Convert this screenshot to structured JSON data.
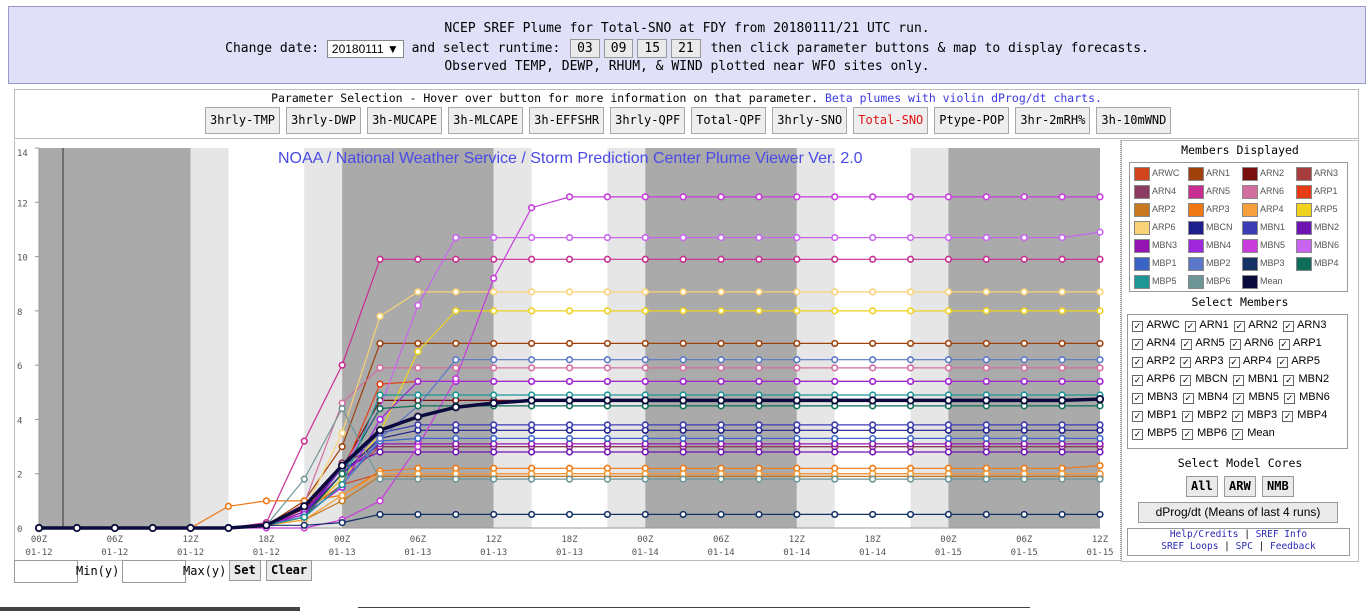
{
  "header": {
    "line1": "NCEP SREF Plume for Total-SNO at FDY from 20180111/21 UTC run.",
    "change_date_label": "Change date:",
    "date_value": "20180111",
    "runtime_label": "and select runtime:",
    "runtimes": [
      "03",
      "09",
      "15",
      "21"
    ],
    "line2_tail": "then click parameter buttons & map to display forecasts.",
    "line3": "Observed TEMP, DEWP, RHUM, & WIND plotted near WFO sites only."
  },
  "params": {
    "title": "Parameter Selection - Hover over button for more information on that parameter.",
    "beta_link": "Beta plumes with violin dProg/dt charts.",
    "buttons": [
      "3hrly-TMP",
      "3hrly-DWP",
      "3h-MUCAPE",
      "3h-MLCAPE",
      "3h-EFFSHR",
      "3hrly-QPF",
      "Total-QPF",
      "3hrly-SNO",
      "Total-SNO",
      "Ptype-POP",
      "3hr-2mRH%",
      "3h-10mWND"
    ],
    "selected": "Total-SNO"
  },
  "chart": {
    "watermark": "NOAA / National Weather Service / Storm Prediction Center Plume Viewer Ver. 2.0"
  },
  "chart_data": {
    "type": "line",
    "ylim": [
      0,
      14
    ],
    "yticks": [
      0,
      2,
      4,
      6,
      8,
      10,
      12,
      14
    ],
    "x_ticks": [
      {
        "hour": "00Z",
        "date": "01-12"
      },
      {
        "hour": "06Z",
        "date": "01-12"
      },
      {
        "hour": "12Z",
        "date": "01-12"
      },
      {
        "hour": "18Z",
        "date": "01-12"
      },
      {
        "hour": "00Z",
        "date": "01-13"
      },
      {
        "hour": "06Z",
        "date": "01-13"
      },
      {
        "hour": "12Z",
        "date": "01-13"
      },
      {
        "hour": "18Z",
        "date": "01-13"
      },
      {
        "hour": "00Z",
        "date": "01-14"
      },
      {
        "hour": "06Z",
        "date": "01-14"
      },
      {
        "hour": "12Z",
        "date": "01-14"
      },
      {
        "hour": "18Z",
        "date": "01-14"
      },
      {
        "hour": "00Z",
        "date": "01-15"
      },
      {
        "hour": "06Z",
        "date": "01-15"
      },
      {
        "hour": "12Z",
        "date": "01-15"
      }
    ],
    "x_range_hours_from_12Z_00": [
      0,
      84
    ],
    "night_bands_hours": [
      [
        0,
        12
      ],
      [
        24,
        36
      ],
      [
        48,
        60
      ],
      [
        72,
        84
      ]
    ],
    "series": [
      {
        "name": "ARWC",
        "color": "#d2461e",
        "values": [
          0,
          0,
          0,
          0,
          0,
          0,
          0.1,
          0.6,
          1.6,
          2.0,
          2.0,
          2.0,
          2.0,
          2.0,
          2.0,
          2.0,
          2.0,
          2.0,
          2.0,
          2.0,
          2.0,
          2.0,
          2.0,
          2.0,
          2.0,
          2.0,
          2.0,
          2.0,
          2.0
        ]
      },
      {
        "name": "ARN1",
        "color": "#a0400a",
        "values": [
          0,
          0,
          0,
          0,
          0,
          0,
          0.1,
          1.0,
          3.0,
          6.8,
          6.8,
          6.8,
          6.8,
          6.8,
          6.8,
          6.8,
          6.8,
          6.8,
          6.8,
          6.8,
          6.8,
          6.8,
          6.8,
          6.8,
          6.8,
          6.8,
          6.8,
          6.8,
          6.8
        ]
      },
      {
        "name": "ARN2",
        "color": "#7a0f0f",
        "values": [
          0,
          0,
          0,
          0,
          0,
          0,
          0.1,
          0.7,
          2.2,
          4.7,
          4.7,
          4.7,
          4.7,
          4.7,
          4.7,
          4.7,
          4.7,
          4.7,
          4.7,
          4.7,
          4.7,
          4.7,
          4.7,
          4.7,
          4.7,
          4.7,
          4.7,
          4.7,
          4.7
        ]
      },
      {
        "name": "ARN3",
        "color": "#a63c3c",
        "values": [
          0,
          0,
          0,
          0,
          0,
          0,
          0.1,
          0.5,
          1.8,
          3.0,
          3.0,
          3.0,
          3.0,
          3.0,
          3.0,
          3.0,
          3.0,
          3.0,
          3.0,
          3.0,
          3.0,
          3.0,
          3.0,
          3.0,
          3.0,
          3.0,
          3.0,
          3.0,
          3.0
        ]
      },
      {
        "name": "ARN4",
        "color": "#8b3a62",
        "values": [
          0,
          0,
          0,
          0,
          0,
          0,
          0.1,
          0.6,
          2.4,
          3.0,
          3.0,
          3.0,
          3.0,
          3.0,
          3.0,
          3.0,
          3.0,
          3.0,
          3.0,
          3.0,
          3.0,
          3.0,
          3.0,
          3.0,
          3.0,
          3.0,
          3.0,
          3.0,
          3.0
        ]
      },
      {
        "name": "ARN5",
        "color": "#c82d91",
        "values": [
          0,
          0,
          0,
          0,
          0,
          0,
          0.2,
          3.2,
          6.0,
          9.9,
          9.9,
          9.9,
          9.9,
          9.9,
          9.9,
          9.9,
          9.9,
          9.9,
          9.9,
          9.9,
          9.9,
          9.9,
          9.9,
          9.9,
          9.9,
          9.9,
          9.9,
          9.9,
          9.9
        ]
      },
      {
        "name": "ARN6",
        "color": "#d26ea0",
        "values": [
          0,
          0,
          0,
          0,
          0,
          0,
          0.1,
          0.9,
          4.6,
          5.9,
          5.9,
          5.9,
          5.9,
          5.9,
          5.9,
          5.9,
          5.9,
          5.9,
          5.9,
          5.9,
          5.9,
          5.9,
          5.9,
          5.9,
          5.9,
          5.9,
          5.9,
          5.9,
          5.9
        ]
      },
      {
        "name": "ARP1",
        "color": "#e63c14",
        "values": [
          0,
          0,
          0,
          0,
          0,
          0,
          0.1,
          0.4,
          2.0,
          5.3,
          5.4,
          5.4,
          5.4,
          5.4,
          5.4,
          5.4,
          5.4,
          5.4,
          5.4,
          5.4,
          5.4,
          5.4,
          5.4,
          5.4,
          5.4,
          5.4,
          5.4,
          5.4,
          5.4
        ]
      },
      {
        "name": "ARP2",
        "color": "#c8781e",
        "values": [
          0,
          0,
          0,
          0,
          0,
          0,
          0.1,
          0.3,
          1.0,
          1.9,
          1.9,
          1.9,
          1.9,
          1.9,
          1.9,
          1.9,
          1.9,
          1.9,
          1.9,
          1.9,
          1.9,
          1.9,
          1.9,
          1.9,
          1.9,
          1.9,
          1.9,
          1.9,
          1.9
        ]
      },
      {
        "name": "ARP3",
        "color": "#f07814",
        "values": [
          0,
          0,
          0,
          0,
          0,
          0.8,
          1.0,
          1.0,
          1.2,
          2.1,
          2.2,
          2.2,
          2.2,
          2.2,
          2.2,
          2.2,
          2.2,
          2.2,
          2.2,
          2.2,
          2.2,
          2.2,
          2.2,
          2.2,
          2.2,
          2.2,
          2.2,
          2.2,
          2.3
        ]
      },
      {
        "name": "ARP4",
        "color": "#f5a03c",
        "values": [
          0,
          0,
          0,
          0,
          0,
          0,
          0.1,
          0.3,
          1.2,
          2.0,
          2.0,
          2.0,
          2.0,
          2.0,
          2.0,
          2.0,
          2.0,
          2.0,
          2.0,
          2.0,
          2.0,
          2.0,
          2.0,
          2.0,
          2.0,
          2.0,
          2.0,
          2.0,
          2.0
        ]
      },
      {
        "name": "ARP5",
        "color": "#f0d21e",
        "values": [
          0,
          0,
          0,
          0,
          0,
          0,
          0.1,
          0.5,
          1.8,
          3.5,
          6.5,
          8.0,
          8.0,
          8.0,
          8.0,
          8.0,
          8.0,
          8.0,
          8.0,
          8.0,
          8.0,
          8.0,
          8.0,
          8.0,
          8.0,
          8.0,
          8.0,
          8.0,
          8.0
        ]
      },
      {
        "name": "ARP6",
        "color": "#fad278",
        "values": [
          0,
          0,
          0,
          0,
          0,
          0,
          0.1,
          0.6,
          3.5,
          7.8,
          8.7,
          8.7,
          8.7,
          8.7,
          8.7,
          8.7,
          8.7,
          8.7,
          8.7,
          8.7,
          8.7,
          8.7,
          8.7,
          8.7,
          8.7,
          8.7,
          8.7,
          8.7,
          8.7
        ]
      },
      {
        "name": "MBCN",
        "color": "#1e1e8c",
        "values": [
          0,
          0,
          0,
          0,
          0,
          0,
          0.1,
          0.5,
          2.0,
          3.3,
          3.6,
          3.6,
          3.6,
          3.6,
          3.6,
          3.6,
          3.6,
          3.6,
          3.6,
          3.6,
          3.6,
          3.6,
          3.6,
          3.6,
          3.6,
          3.6,
          3.6,
          3.6,
          3.6
        ]
      },
      {
        "name": "MBN1",
        "color": "#3c3cb4",
        "values": [
          0,
          0,
          0,
          0,
          0,
          0,
          0.1,
          0.5,
          2.2,
          3.5,
          3.8,
          3.8,
          3.8,
          3.8,
          3.8,
          3.8,
          3.8,
          3.8,
          3.8,
          3.8,
          3.8,
          3.8,
          3.8,
          3.8,
          3.8,
          3.8,
          3.8,
          3.8,
          3.8
        ]
      },
      {
        "name": "MBN2",
        "color": "#6e14b4",
        "values": [
          0,
          0,
          0,
          0,
          0,
          0,
          0.1,
          0.6,
          2.2,
          2.8,
          2.8,
          2.8,
          2.8,
          2.8,
          2.8,
          2.8,
          2.8,
          2.8,
          2.8,
          2.8,
          2.8,
          2.8,
          2.8,
          2.8,
          2.8,
          2.8,
          2.8,
          2.8,
          2.8
        ]
      },
      {
        "name": "MBN3",
        "color": "#9614b4",
        "values": [
          0,
          0,
          0,
          0,
          0,
          0,
          0.1,
          0.6,
          2.0,
          3.1,
          3.1,
          3.1,
          3.1,
          3.1,
          3.1,
          3.1,
          3.1,
          3.1,
          3.1,
          3.1,
          3.1,
          3.1,
          3.1,
          3.1,
          3.1,
          3.1,
          3.1,
          3.1,
          3.1
        ]
      },
      {
        "name": "MBN4",
        "color": "#a028dc",
        "values": [
          0,
          0,
          0,
          0,
          0,
          0,
          0.1,
          0.5,
          1.5,
          4.0,
          5.4,
          5.4,
          5.4,
          5.4,
          5.4,
          5.4,
          5.4,
          5.4,
          5.4,
          5.4,
          5.4,
          5.4,
          5.4,
          5.4,
          5.4,
          5.4,
          5.4,
          5.4,
          5.4
        ]
      },
      {
        "name": "MBN5",
        "color": "#c83cdc",
        "values": [
          0,
          0,
          0,
          0,
          0,
          0,
          0,
          0,
          0.3,
          1.0,
          3.0,
          5.5,
          9.2,
          11.8,
          12.2,
          12.2,
          12.2,
          12.2,
          12.2,
          12.2,
          12.2,
          12.2,
          12.2,
          12.2,
          12.2,
          12.2,
          12.2,
          12.2,
          12.2
        ]
      },
      {
        "name": "MBN6",
        "color": "#c864f0",
        "values": [
          0,
          0,
          0,
          0,
          0,
          0,
          0.1,
          0.8,
          2.2,
          4.4,
          8.2,
          10.7,
          10.7,
          10.7,
          10.7,
          10.7,
          10.7,
          10.7,
          10.7,
          10.7,
          10.7,
          10.7,
          10.7,
          10.7,
          10.7,
          10.7,
          10.7,
          10.7,
          10.9
        ]
      },
      {
        "name": "MBP1",
        "color": "#3c64c8",
        "values": [
          0,
          0,
          0,
          0,
          0,
          0,
          0.1,
          0.4,
          1.6,
          3.2,
          3.3,
          3.3,
          3.3,
          3.3,
          3.3,
          3.3,
          3.3,
          3.3,
          3.3,
          3.3,
          3.3,
          3.3,
          3.3,
          3.3,
          3.3,
          3.3,
          3.3,
          3.3,
          3.3
        ]
      },
      {
        "name": "MBP2",
        "color": "#5a78c8",
        "values": [
          0,
          0,
          0,
          0,
          0,
          0,
          0.1,
          0.4,
          1.6,
          3.3,
          4.5,
          6.2,
          6.2,
          6.2,
          6.2,
          6.2,
          6.2,
          6.2,
          6.2,
          6.2,
          6.2,
          6.2,
          6.2,
          6.2,
          6.2,
          6.2,
          6.2,
          6.2,
          6.2
        ]
      },
      {
        "name": "MBP3",
        "color": "#143264",
        "values": [
          0,
          0,
          0,
          0,
          0,
          0,
          0.1,
          0.1,
          0.2,
          0.5,
          0.5,
          0.5,
          0.5,
          0.5,
          0.5,
          0.5,
          0.5,
          0.5,
          0.5,
          0.5,
          0.5,
          0.5,
          0.5,
          0.5,
          0.5,
          0.5,
          0.5,
          0.5,
          0.5
        ]
      },
      {
        "name": "MBP4",
        "color": "#0f6e5a",
        "values": [
          0,
          0,
          0,
          0,
          0,
          0,
          0.1,
          0.4,
          2.0,
          4.4,
          4.5,
          4.5,
          4.5,
          4.5,
          4.5,
          4.5,
          4.5,
          4.5,
          4.5,
          4.5,
          4.5,
          4.5,
          4.5,
          4.5,
          4.5,
          4.5,
          4.5,
          4.5,
          4.5
        ]
      },
      {
        "name": "MBP5",
        "color": "#1e9696",
        "values": [
          0,
          0,
          0,
          0,
          0,
          0,
          0.1,
          0.4,
          1.6,
          4.9,
          4.9,
          4.9,
          4.9,
          4.9,
          4.9,
          4.9,
          4.9,
          4.9,
          4.9,
          4.9,
          4.9,
          4.9,
          4.9,
          4.9,
          4.9,
          4.9,
          4.9,
          4.9,
          4.9
        ]
      },
      {
        "name": "MBP6",
        "color": "#6e9696",
        "values": [
          0,
          0,
          0,
          0,
          0,
          0,
          0.1,
          1.8,
          4.4,
          1.8,
          1.8,
          1.8,
          1.8,
          1.8,
          1.8,
          1.8,
          1.8,
          1.8,
          1.8,
          1.8,
          1.8,
          1.8,
          1.8,
          1.8,
          1.8,
          1.8,
          1.8,
          1.8,
          1.8
        ]
      },
      {
        "name": "Mean",
        "color": "#0a0a3c",
        "values": [
          0,
          0,
          0,
          0,
          0,
          0,
          0.1,
          0.8,
          2.3,
          3.6,
          4.1,
          4.45,
          4.6,
          4.7,
          4.7,
          4.7,
          4.7,
          4.7,
          4.7,
          4.7,
          4.7,
          4.7,
          4.7,
          4.7,
          4.7,
          4.7,
          4.7,
          4.7,
          4.75
        ]
      }
    ]
  },
  "panel": {
    "members_displayed_title": "Members Displayed",
    "select_members_title": "Select Members",
    "members": [
      "ARWC",
      "ARN1",
      "ARN2",
      "ARN3",
      "ARN4",
      "ARN5",
      "ARN6",
      "ARP1",
      "ARP2",
      "ARP3",
      "ARP4",
      "ARP5",
      "ARP6",
      "MBCN",
      "MBN1",
      "MBN2",
      "MBN3",
      "MBN4",
      "MBN5",
      "MBN6",
      "MBP1",
      "MBP2",
      "MBP3",
      "MBP4",
      "MBP5",
      "MBP6",
      "Mean"
    ],
    "select_cores_title": "Select Model Cores",
    "core_buttons": {
      "all": "All",
      "arw": "ARW",
      "nmb": "NMB"
    },
    "dprog_button": "dProg/dt (Means of last 4 runs)",
    "links": {
      "help": "Help/Credits",
      "sref_info": "SREF Info",
      "sref_loops": "SREF Loops",
      "spc": "SPC",
      "feedback": "Feedback",
      "sep": "|"
    }
  },
  "bottom": {
    "min_label": "Min(y)",
    "max_label": "Max(y)",
    "set_button": "Set",
    "clear_button": "Clear"
  }
}
